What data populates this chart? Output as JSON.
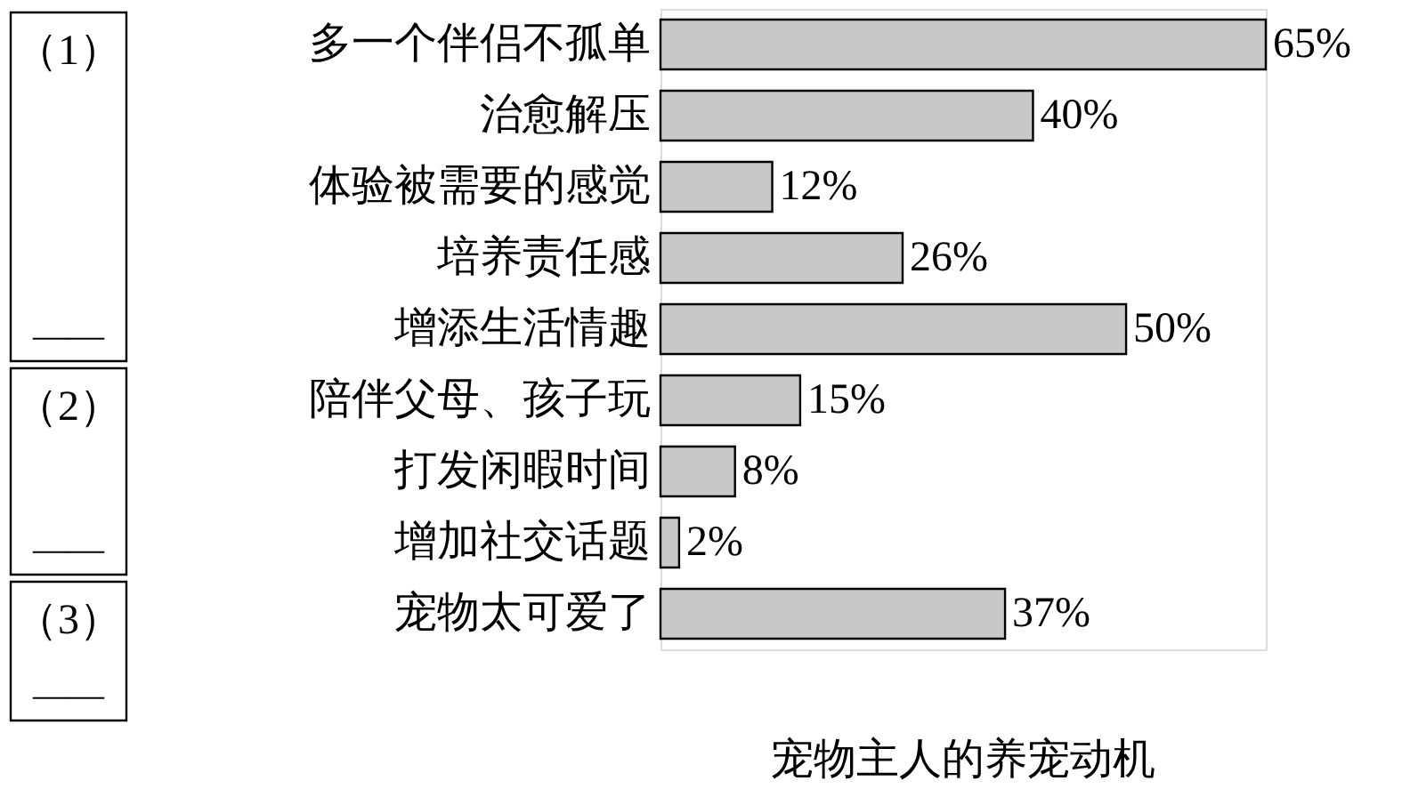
{
  "chart_data": {
    "type": "bar",
    "orientation": "horizontal",
    "title": "宠物主人的养宠动机",
    "categories": [
      "多一个伴侣不孤单",
      "治愈解压",
      "体验被需要的感觉",
      "培养责任感",
      "增添生活情趣",
      "陪伴父母、孩子玩",
      "打发闲暇时间",
      "增加社交话题",
      "宠物太可爱了"
    ],
    "values": [
      65,
      40,
      12,
      26,
      50,
      15,
      8,
      2,
      37
    ],
    "value_labels": [
      "65%",
      "40%",
      "12%",
      "26%",
      "50%",
      "15%",
      "8%",
      "2%",
      "37%"
    ],
    "color": "#c8c8c8",
    "annotations": [
      "（1）",
      "——",
      "（2）",
      "——",
      "（3）",
      "——"
    ]
  }
}
